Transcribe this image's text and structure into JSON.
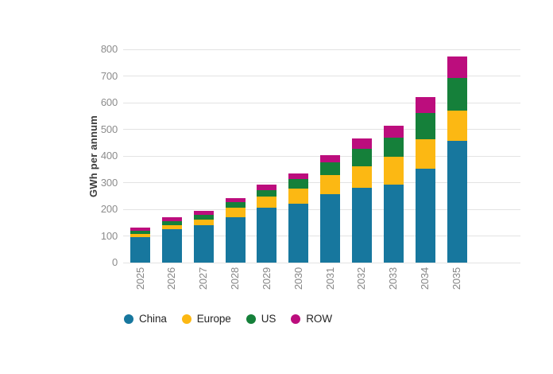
{
  "chart_data": {
    "type": "bar",
    "stacked": true,
    "title": "",
    "xlabel": "",
    "ylabel": "GWh per annum",
    "categories": [
      "2025",
      "2026",
      "2027",
      "2028",
      "2029",
      "2030",
      "2031",
      "2032",
      "2033",
      "2034",
      "2035"
    ],
    "series": [
      {
        "name": "China",
        "color": "#17779E",
        "values": [
          95,
          125,
          140,
          170,
          205,
          220,
          258,
          280,
          293,
          353,
          458
        ]
      },
      {
        "name": "Europe",
        "color": "#FCB813",
        "values": [
          12,
          15,
          22,
          35,
          44,
          57,
          70,
          82,
          103,
          110,
          112
        ]
      },
      {
        "name": "US",
        "color": "#15803A",
        "values": [
          12,
          16,
          16,
          22,
          24,
          36,
          49,
          64,
          74,
          98,
          123
        ]
      },
      {
        "name": "ROW",
        "color": "#BC0D7D",
        "values": [
          11,
          13,
          15,
          16,
          19,
          21,
          27,
          39,
          44,
          60,
          81
        ]
      }
    ],
    "totals": [
      130,
      169,
      193,
      243,
      292,
      334,
      404,
      465,
      514,
      621,
      774
    ],
    "ylim": [
      0,
      800
    ],
    "yticks": [
      0,
      100,
      200,
      300,
      400,
      500,
      600,
      700,
      800
    ],
    "grid": true,
    "legend_position": "bottom",
    "gridline_color": "#e3e3e3"
  }
}
